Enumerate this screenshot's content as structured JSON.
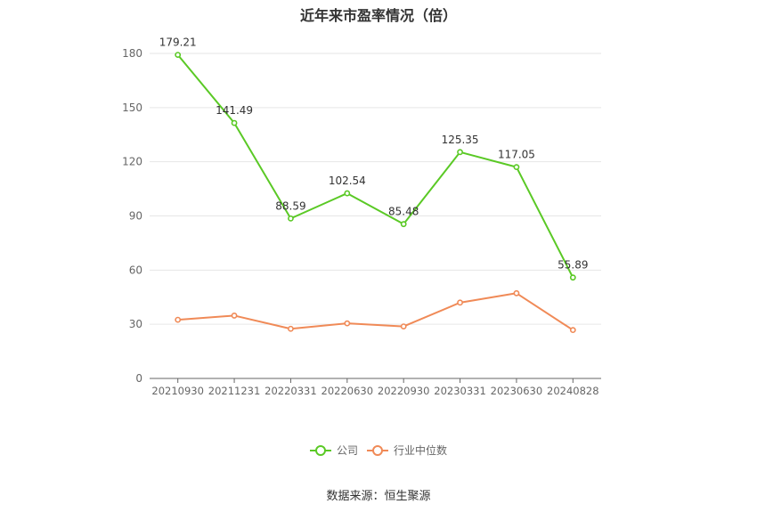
{
  "title": "近年来市盈率情况（倍）",
  "source": "数据来源：恒生聚源",
  "chart_data": {
    "type": "line",
    "title": "近年来市盈率情况（倍）",
    "categories": [
      "20210930",
      "20211231",
      "20220331",
      "20220630",
      "20220930",
      "20230331",
      "20230630",
      "20240828"
    ],
    "ylim": [
      0,
      180
    ],
    "yticks": [
      0,
      30,
      60,
      90,
      120,
      150,
      180
    ],
    "grid": true,
    "legend_position": "bottom-center",
    "series": [
      {
        "name": "公司",
        "color": "#5ac925",
        "values": [
          179.21,
          141.49,
          88.59,
          102.54,
          85.48,
          125.35,
          117.05,
          55.89
        ],
        "labels": [
          "179.21",
          "141.49",
          "88.59",
          "102.54",
          "85.48",
          "125.35",
          "117.05",
          "55.89"
        ]
      },
      {
        "name": "行业中位数",
        "color": "#f08a57",
        "values": [
          32.5,
          34.8,
          27.5,
          30.5,
          28.8,
          42.0,
          47.2,
          26.8
        ]
      }
    ]
  }
}
